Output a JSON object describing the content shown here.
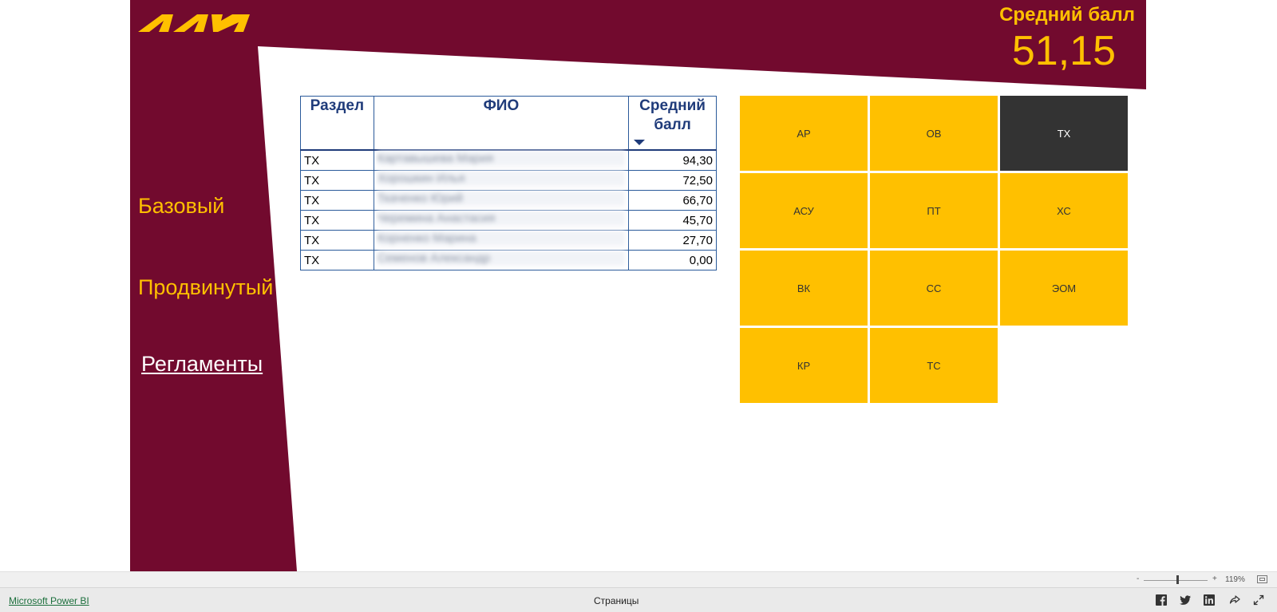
{
  "kpi": {
    "label": "Средний балл",
    "value": "51,15"
  },
  "nav": {
    "basic": "Базовый",
    "advanced": "Продвинутый",
    "regulations": "Регламенты"
  },
  "table": {
    "headers": {
      "section": "Раздел",
      "name": "ФИО",
      "score": "Средний балл"
    },
    "rows": [
      {
        "section": "ТХ",
        "name": "Картавышева Мария",
        "score": "94,30"
      },
      {
        "section": "ТХ",
        "name": "Хорошкин Илья",
        "score": "72,50"
      },
      {
        "section": "ТХ",
        "name": "Ткаченко Юрий",
        "score": "66,70"
      },
      {
        "section": "ТХ",
        "name": "Черемина Анастасия",
        "score": "45,70"
      },
      {
        "section": "ТХ",
        "name": "Корненко Марина",
        "score": "27,70"
      },
      {
        "section": "ТХ",
        "name": "Семенов Александр",
        "score": "0,00"
      }
    ]
  },
  "tiles": [
    "АР",
    "ОВ",
    "ТХ",
    "АСУ",
    "ПТ",
    "ХС",
    "ВК",
    "СС",
    "ЭОМ",
    "КР",
    "ТС"
  ],
  "selected_tile": "ТХ",
  "zoom": {
    "minus": "-",
    "plus": "+",
    "percent": "119%"
  },
  "footer": {
    "brand": "Microsoft Power BI",
    "pages": "Страницы"
  },
  "colors": {
    "maroon": "#720a2e",
    "accent": "#ffc000",
    "tile_active": "#333333",
    "table_header": "#1f3b7a"
  },
  "icons": [
    "facebook-icon",
    "twitter-icon",
    "linkedin-icon",
    "share-icon",
    "expand-icon"
  ]
}
